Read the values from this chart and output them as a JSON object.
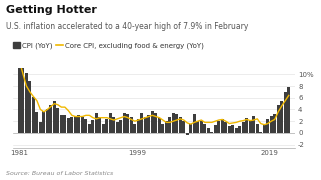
{
  "title": "Getting Hotter",
  "subtitle": "U.S. inflation accelerated to a 40-year high of 7.9% in February",
  "source": "Source: Bureau of Labor Statistics",
  "legend_bar": "CPI (YoY)",
  "legend_line": "Core CPI, excluding food & energy (YoY)",
  "bar_color": "#3d3d3d",
  "line_color": "#f0b800",
  "background_color": "#ffffff",
  "ylabel": "%",
  "ylim": [
    -2.5,
    11
  ],
  "yticks": [
    -2,
    0,
    2,
    4,
    6,
    8,
    10
  ],
  "ytick_labels": [
    "-2",
    "0",
    "2",
    "4",
    "6",
    "8",
    "10%"
  ],
  "xtick_years": [
    1981,
    1999,
    2019
  ],
  "title_fontsize": 8,
  "subtitle_fontsize": 5.5,
  "legend_fontsize": 5,
  "tick_fontsize": 5,
  "source_fontsize": 4.5,
  "cpi_data": [
    13.5,
    11.8,
    10.3,
    8.9,
    6.2,
    3.5,
    1.9,
    3.7,
    4.0,
    4.8,
    5.4,
    4.2,
    3.0,
    3.0,
    2.6,
    2.8,
    2.9,
    3.0,
    2.8,
    2.3,
    1.6,
    2.2,
    3.4,
    2.8,
    1.6,
    2.3,
    3.4,
    2.8,
    1.9,
    2.2,
    3.4,
    3.2,
    2.8,
    1.5,
    2.3,
    3.4,
    2.8,
    3.0,
    3.8,
    3.4,
    2.6,
    1.5,
    2.1,
    2.7,
    3.4,
    3.2,
    2.8,
    2.1,
    -0.4,
    1.6,
    3.2,
    2.1,
    2.1,
    1.5,
    0.8,
    0.1,
    1.3,
    2.1,
    2.4,
    1.8,
    1.2,
    1.3,
    0.8,
    1.2,
    1.8,
    2.5,
    2.1,
    2.9,
    1.5,
    0.1,
    1.3,
    2.3,
    2.9,
    3.2,
    4.7,
    5.4,
    7.0,
    7.9
  ],
  "core_cpi_data": [
    12.2,
    10.1,
    8.0,
    7.0,
    6.2,
    5.5,
    4.0,
    3.6,
    4.0,
    4.5,
    5.0,
    4.8,
    4.4,
    4.4,
    3.8,
    3.0,
    2.8,
    2.8,
    2.8,
    3.0,
    3.0,
    2.6,
    2.4,
    2.6,
    2.6,
    2.6,
    2.4,
    2.2,
    2.4,
    2.6,
    2.8,
    2.6,
    2.3,
    2.0,
    2.2,
    2.4,
    2.6,
    2.8,
    3.0,
    2.8,
    2.6,
    2.2,
    1.8,
    1.8,
    2.0,
    2.2,
    2.4,
    2.2,
    1.7,
    1.5,
    1.8,
    2.0,
    2.2,
    1.8,
    1.8,
    1.8,
    2.0,
    2.2,
    2.3,
    2.0,
    1.6,
    1.7,
    1.8,
    2.0,
    2.1,
    2.3,
    2.1,
    2.2,
    2.4,
    1.6,
    1.4,
    1.6,
    2.0,
    2.3,
    3.6,
    4.6,
    5.5,
    6.4
  ],
  "year_start": 1981,
  "year_end": 2022
}
